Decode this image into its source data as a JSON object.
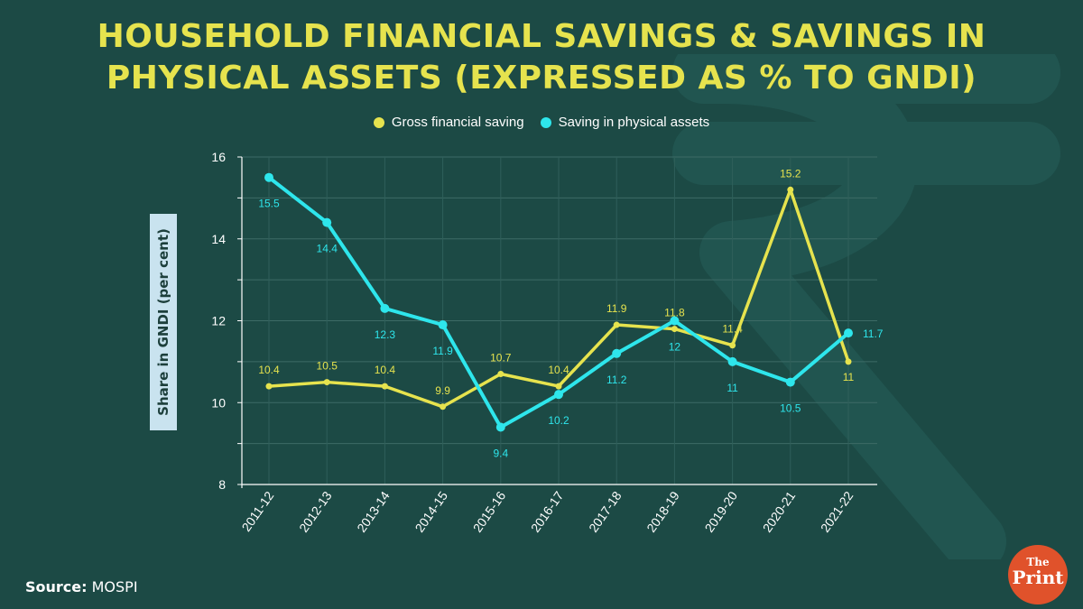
{
  "title": {
    "line1": "HOUSEHOLD FINANCIAL SAVINGS & SAVINGS IN",
    "line2": "PHYSICAL ASSETS (EXPRESSED AS % TO GNDI)"
  },
  "source": {
    "label": "Source:",
    "value": "MOSPI"
  },
  "logo": {
    "line1": "The",
    "line2": "Print"
  },
  "colors": {
    "background": "#1c4a45",
    "title": "#e6e34e",
    "gross_financial": "#e6e34e",
    "physical_assets": "#2ee6ec",
    "logo": "#e0522b"
  },
  "chart_data": {
    "type": "line",
    "title": "HOUSEHOLD FINANCIAL SAVINGS & SAVINGS IN PHYSICAL ASSETS (EXPRESSED AS % TO GNDI)",
    "xlabel": "",
    "ylabel": "Share in GNDI (per cent)",
    "ylim": [
      8,
      16
    ],
    "yticks": [
      8,
      10,
      12,
      14,
      16
    ],
    "grid": true,
    "legend_position": "top-center",
    "categories": [
      "2011-12",
      "2012-13",
      "2013-14",
      "2014-15",
      "2015-16",
      "2016-17",
      "2017-18",
      "2018-19",
      "2019-20",
      "2020-21",
      "2021-22"
    ],
    "series": [
      {
        "name": "Gross financial saving",
        "color": "#e6e34e",
        "values": [
          10.4,
          10.5,
          10.4,
          9.9,
          10.7,
          10.4,
          11.9,
          11.8,
          11.4,
          15.2,
          11
        ],
        "labels": [
          "10.4",
          "10.5",
          "10.4",
          "9.9",
          "10.7",
          "10.4",
          "11.9",
          "11.8",
          "11.4",
          "15.2",
          "11"
        ]
      },
      {
        "name": "Saving in physical assets",
        "color": "#2ee6ec",
        "values": [
          15.5,
          14.4,
          12.3,
          11.9,
          9.4,
          10.2,
          11.2,
          12,
          11,
          10.5,
          11.7
        ],
        "labels": [
          "15.5",
          "14.4",
          "12.3",
          "11.9",
          "9.4",
          "10.2",
          "11.2",
          "12",
          "11",
          "10.5",
          "11.7"
        ]
      }
    ]
  }
}
